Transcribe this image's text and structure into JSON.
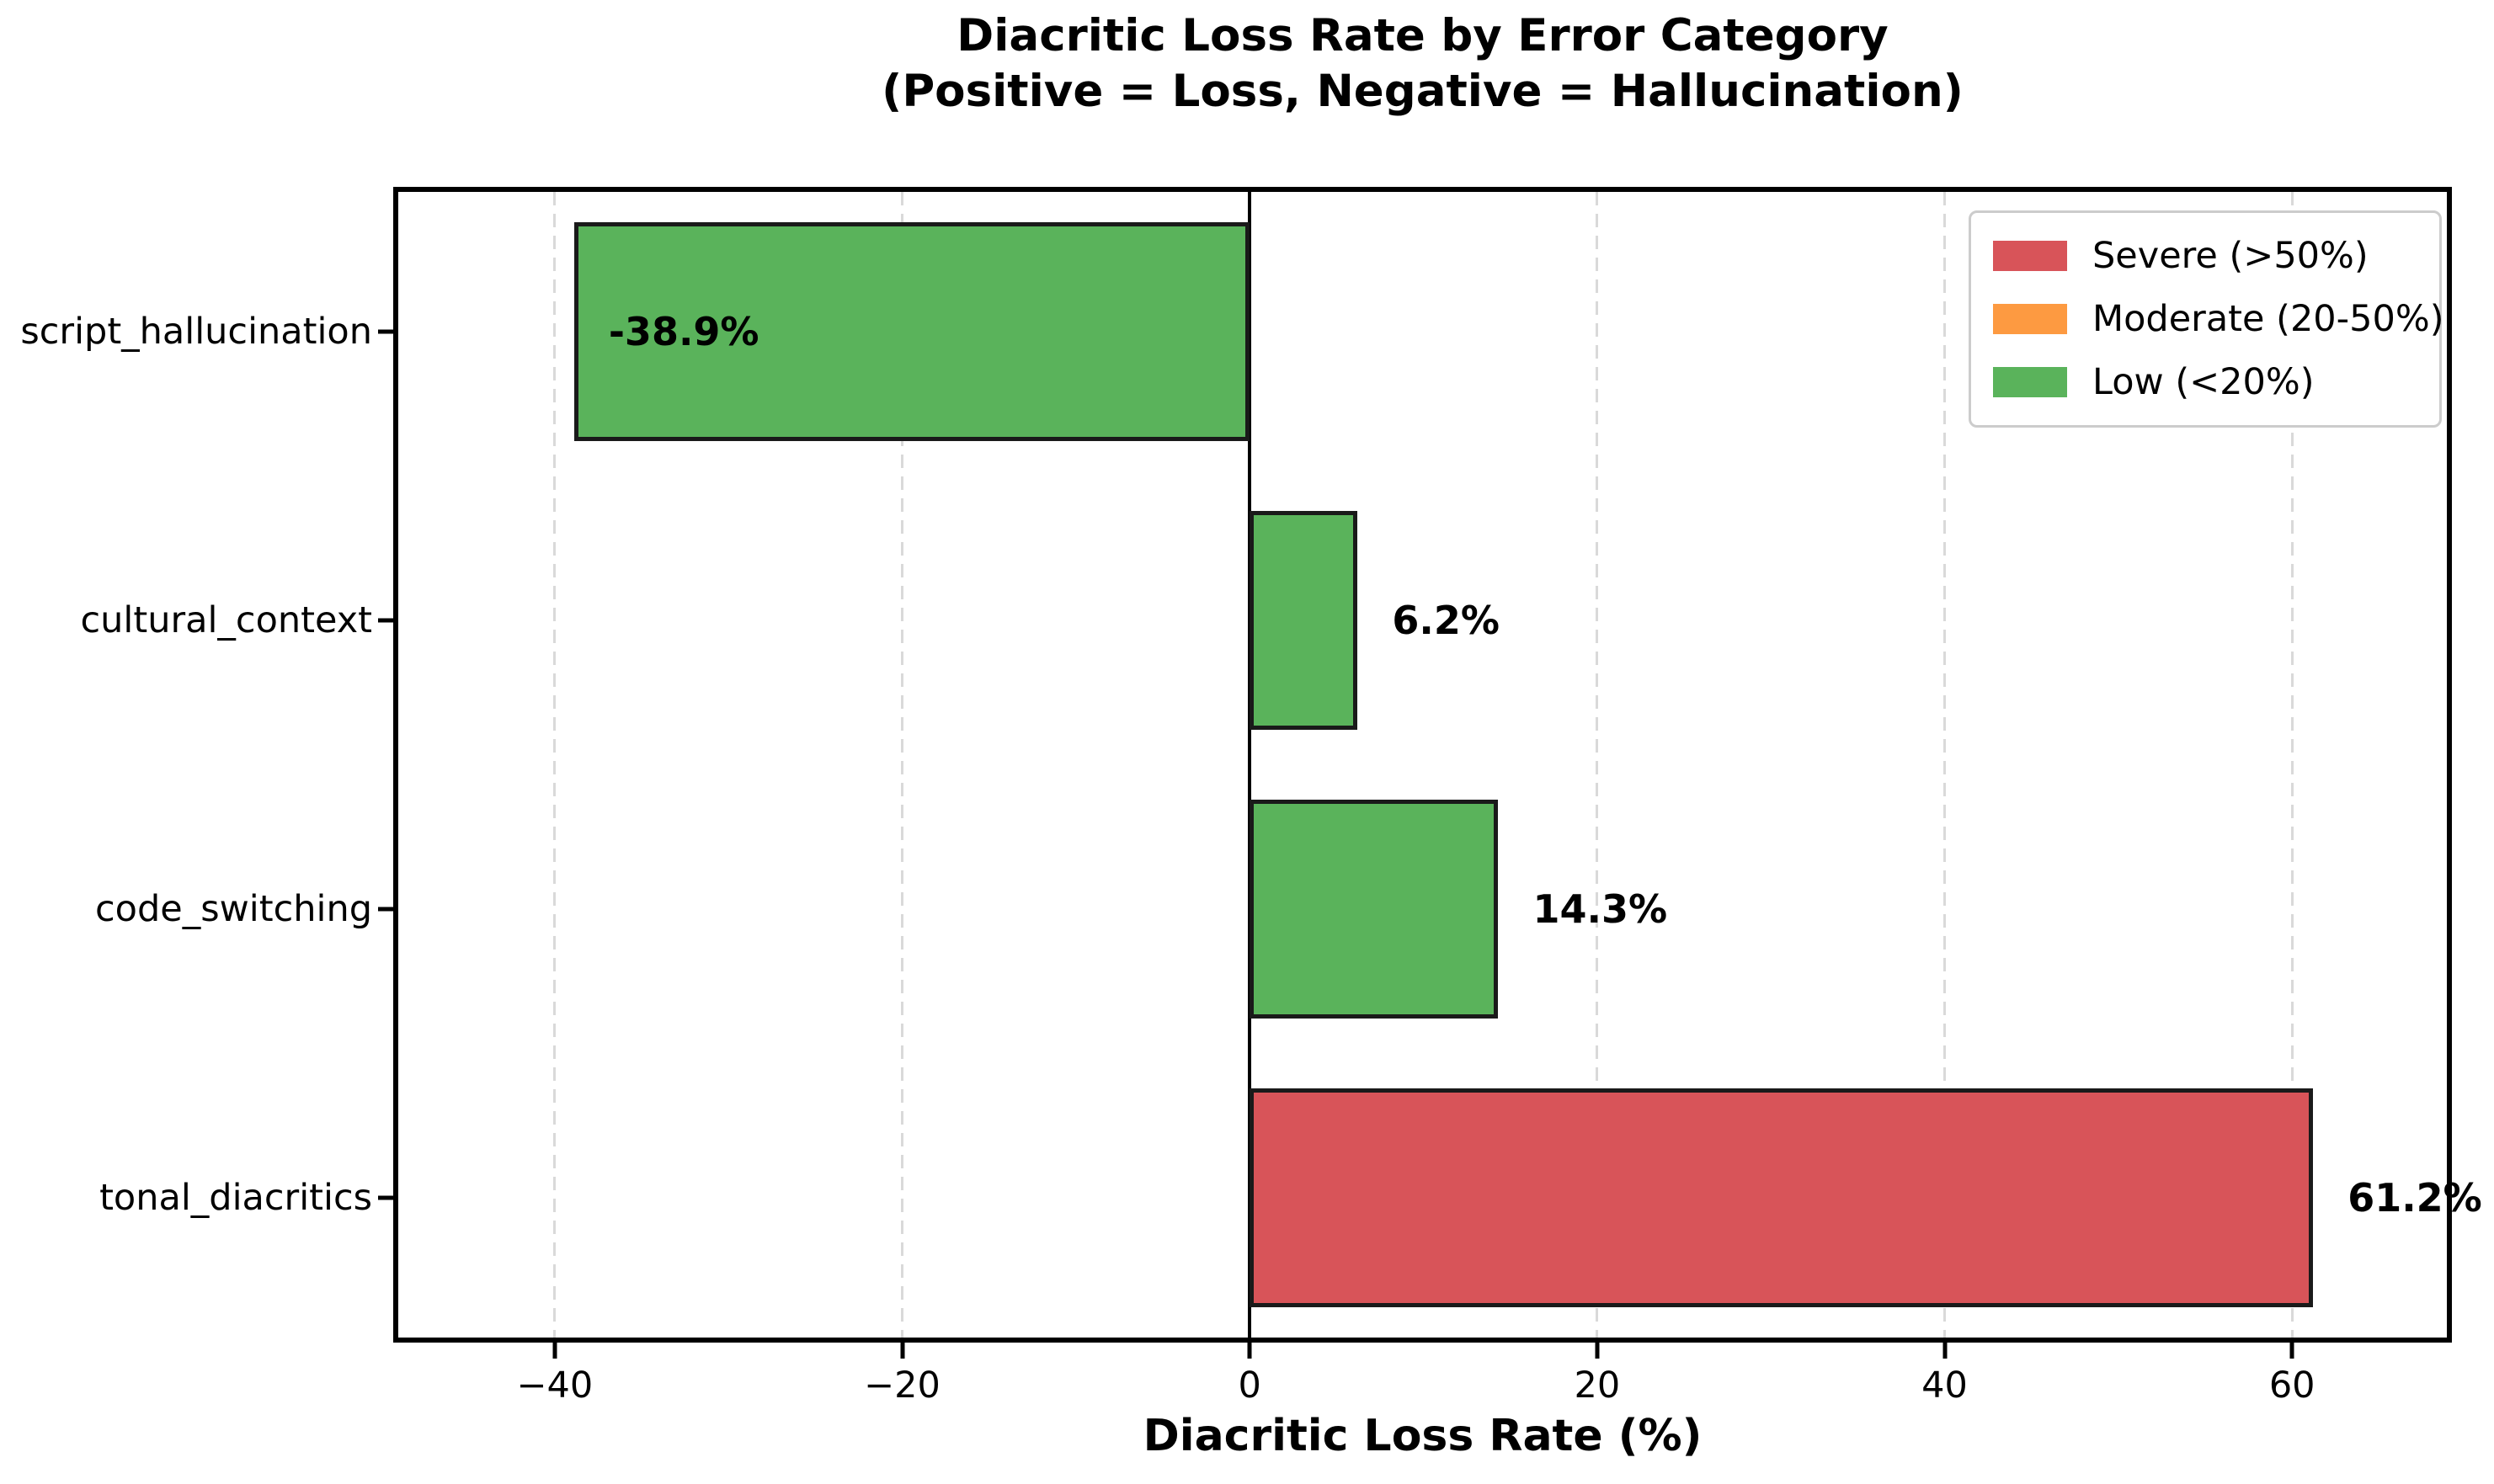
{
  "chart_data": {
    "type": "bar",
    "orientation": "horizontal",
    "title": "Diacritic Loss Rate by Error Category",
    "subtitle": "(Positive = Loss, Negative = Hallucination)",
    "xlabel": "Diacritic Loss Rate (%)",
    "categories": [
      "script_hallucination",
      "cultural_context",
      "code_switching",
      "tonal_diacritics"
    ],
    "values": [
      -38.9,
      6.2,
      14.3,
      61.2
    ],
    "bar_labels": [
      "-38.9%",
      "6.2%",
      "14.3%",
      "61.2%"
    ],
    "bar_colors": [
      "#5ab35b",
      "#5ab35b",
      "#5ab35b",
      "#d85459"
    ],
    "bar_edge_color": "#1a1a1a",
    "xlim": [
      -49.3,
      69.2
    ],
    "xticks": [
      -40,
      -20,
      0,
      20,
      40,
      60
    ],
    "xtick_labels": [
      "−40",
      "−20",
      "0",
      "20",
      "40",
      "60"
    ],
    "grid": true,
    "grid_color": "#d9d9d9",
    "zero_line": true,
    "zero_line_color": "#000000",
    "legend": {
      "position": "upper right",
      "items": [
        {
          "label": "Severe (>50%)",
          "color": "#d85459"
        },
        {
          "label": "Moderate (20-50%)",
          "color": "#fd9a41"
        },
        {
          "label": "Low (<20%)",
          "color": "#5ab35b"
        }
      ]
    }
  }
}
